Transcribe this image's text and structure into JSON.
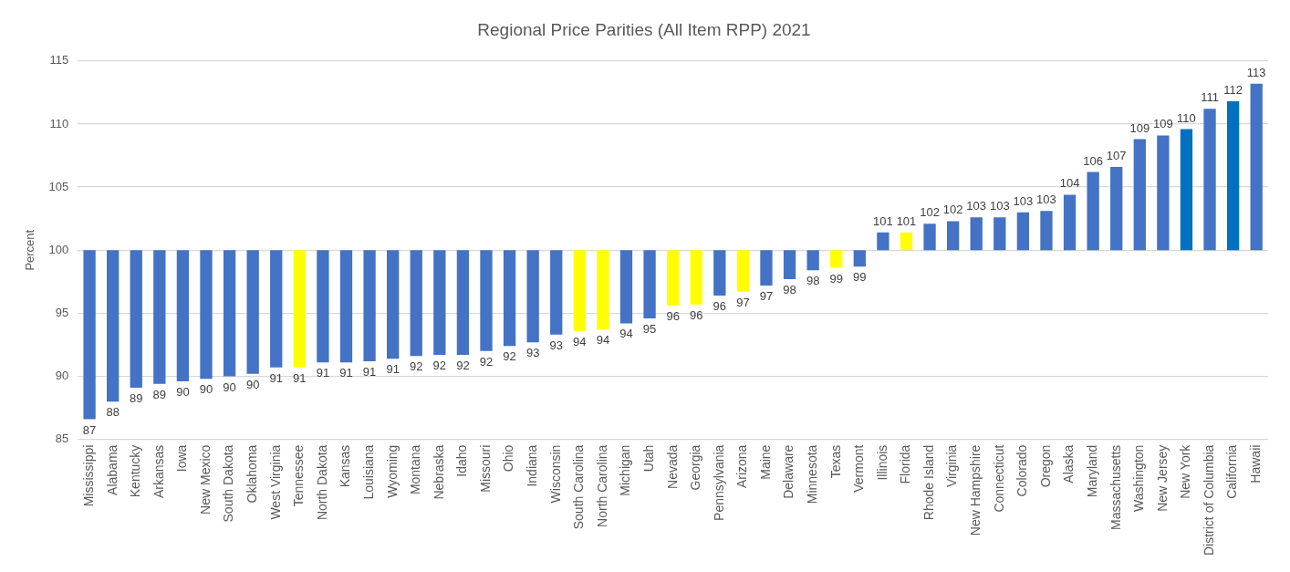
{
  "chart_data": {
    "type": "bar",
    "title": "Regional Price Parities (All Item RPP) 2021",
    "ylabel": "Percent",
    "categories": [
      "Mississippi",
      "Alabama",
      "Kentucky",
      "Arkansas",
      "Iowa",
      "New Mexico",
      "South Dakota",
      "Oklahoma",
      "West Virginia",
      "Tennessee",
      "North Dakota",
      "Kansas",
      "Louisiana",
      "Wyoming",
      "Montana",
      "Nebraska",
      "Idaho",
      "Missouri",
      "Ohio",
      "Indiana",
      "Wisconsin",
      "South Carolina",
      "North Carolina",
      "Michigan",
      "Utah",
      "Nevada",
      "Georgia",
      "Pennsylvania",
      "Arizona",
      "Maine",
      "Delaware",
      "Minnesota",
      "Texas",
      "Vermont",
      "Illinois",
      "Florida",
      "Rhode Island",
      "Virginia",
      "New Hampshire",
      "Connecticut",
      "Colorado",
      "Oregon",
      "Alaska",
      "Maryland",
      "Massachusetts",
      "Washington",
      "New Jersey",
      "New York",
      "District of Columbia",
      "California",
      "Hawaii"
    ],
    "values": [
      -13.4,
      -12.0,
      -10.9,
      -10.6,
      -10.4,
      -10.2,
      -10.0,
      -9.8,
      -9.3,
      -9.3,
      -8.9,
      -8.9,
      -8.8,
      -8.6,
      -8.4,
      -8.3,
      -8.3,
      -8.0,
      -7.6,
      -7.3,
      -6.7,
      -6.4,
      -6.3,
      -5.8,
      -5.4,
      -4.4,
      -4.3,
      -3.6,
      -3.3,
      -2.8,
      -2.3,
      -1.6,
      -1.4,
      -1.3,
      1.4,
      1.4,
      2.1,
      2.3,
      2.6,
      2.6,
      3.0,
      3.1,
      4.4,
      6.2,
      6.6,
      8.8,
      9.1,
      9.6,
      11.2,
      11.8,
      13.2
    ],
    "base": [
      100,
      100,
      100,
      100,
      100,
      100,
      100,
      100,
      100,
      100,
      100,
      100,
      100,
      100,
      100,
      100,
      100,
      100,
      100,
      100,
      100,
      100,
      100,
      100,
      100,
      100,
      100,
      100,
      100,
      100,
      100,
      100,
      100,
      100,
      100,
      100,
      100,
      100,
      100,
      100,
      100,
      100,
      100,
      100,
      100,
      100,
      100,
      100,
      100,
      100,
      100
    ],
    "value_labels": [
      "87",
      "88",
      "89",
      "89",
      "90",
      "90",
      "90",
      "90",
      "91",
      "91",
      "91",
      "91",
      "91",
      "91",
      "92",
      "92",
      "92",
      "92",
      "92",
      "93",
      "93",
      "94",
      "94",
      "94",
      "95",
      "96",
      "96",
      "96",
      "97",
      "97",
      "98",
      "98",
      "99",
      "99",
      "101",
      "101",
      "102",
      "102",
      "103",
      "103",
      "103",
      "103",
      "104",
      "106",
      "107",
      "109",
      "109",
      "110",
      "111",
      "112",
      "113"
    ],
    "colors": [
      "#4472c4",
      "#4472c4",
      "#4472c4",
      "#4472c4",
      "#4472c4",
      "#4472c4",
      "#4472c4",
      "#4472c4",
      "#4472c4",
      "#ffff00",
      "#4472c4",
      "#4472c4",
      "#4472c4",
      "#4472c4",
      "#4472c4",
      "#4472c4",
      "#4472c4",
      "#4472c4",
      "#4472c4",
      "#4472c4",
      "#4472c4",
      "#ffff00",
      "#ffff00",
      "#4472c4",
      "#4472c4",
      "#ffff00",
      "#ffff00",
      "#4472c4",
      "#ffff00",
      "#4472c4",
      "#4472c4",
      "#4472c4",
      "#ffff00",
      "#4472c4",
      "#4472c4",
      "#ffff00",
      "#4472c4",
      "#4472c4",
      "#4472c4",
      "#4472c4",
      "#4472c4",
      "#4472c4",
      "#4472c4",
      "#4472c4",
      "#4472c4",
      "#4472c4",
      "#4472c4",
      "#0070c0",
      "#4472c4",
      "#0070c0",
      "#4472c4"
    ],
    "ylim": [
      85,
      115
    ],
    "yticks": [
      85,
      90,
      95,
      100,
      105,
      110,
      115
    ],
    "grid": "y"
  }
}
